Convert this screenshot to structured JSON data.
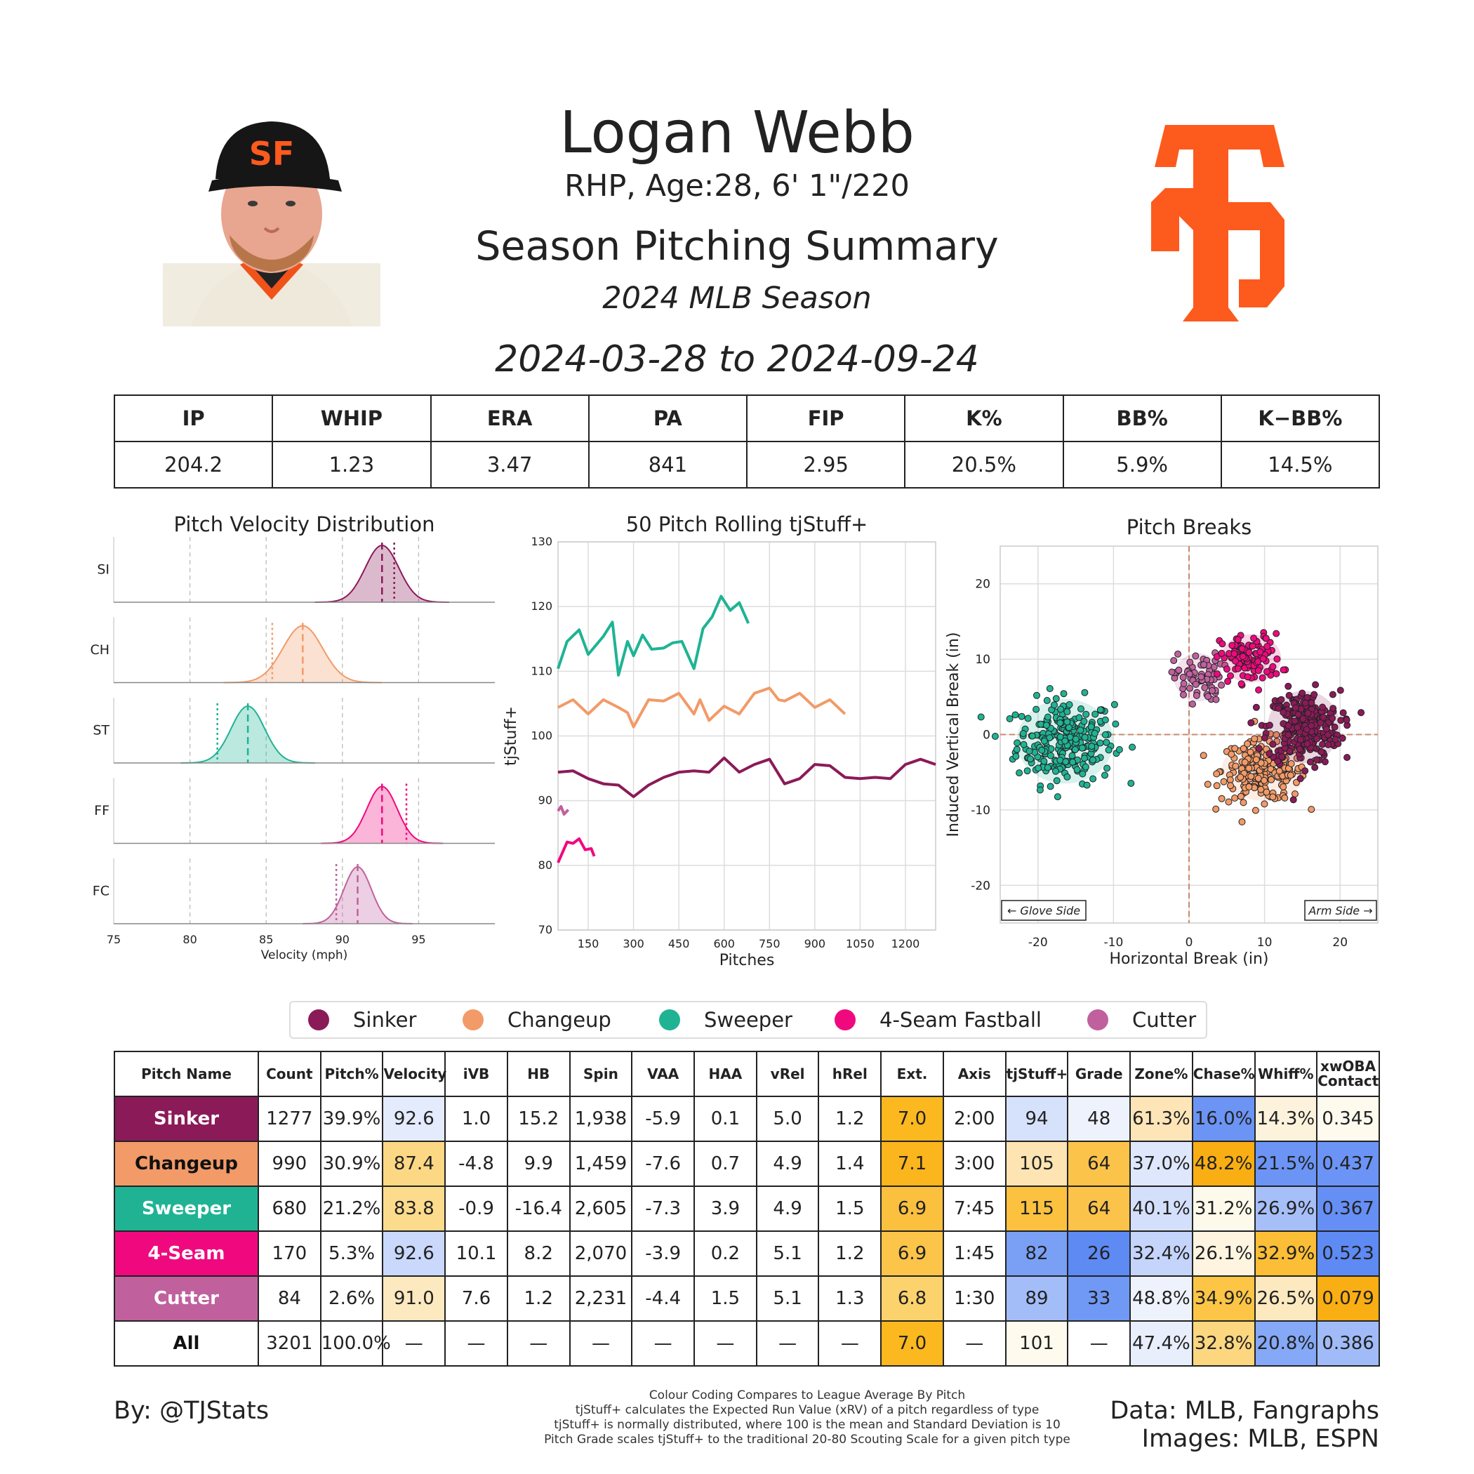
{
  "header": {
    "title": "Logan Webb",
    "subtitle": "RHP, Age:28, 6' 1\"/220",
    "summary": "Season Pitching Summary",
    "season": "2024 MLB Season",
    "date_range": "2024-03-28 to 2024-09-24",
    "team_logo_text": "SF"
  },
  "colors": {
    "sinker": "#8b1a59",
    "changeup": "#f29a68",
    "sweeper": "#1fb394",
    "fourseam": "#f0097e",
    "cutter": "#c0619e",
    "giants_orange": "#fd5a1e"
  },
  "season_stats": {
    "headers": [
      "IP",
      "WHIP",
      "ERA",
      "PA",
      "FIP",
      "K%",
      "BB%",
      "K−BB%"
    ],
    "values": [
      "204.2",
      "1.23",
      "3.47",
      "841",
      "2.95",
      "20.5%",
      "5.9%",
      "14.5%"
    ]
  },
  "chart_data": [
    {
      "type": "area",
      "title": "Pitch Velocity Distribution",
      "xlabel": "Velocity (mph)",
      "ylabel": "",
      "xlim": [
        75,
        100
      ],
      "xticks": [
        75,
        80,
        85,
        90,
        95
      ],
      "categories": [
        "SI",
        "CH",
        "ST",
        "FF",
        "FC"
      ],
      "series": [
        {
          "name": "SI",
          "mean": 92.6,
          "sd": 1.1,
          "league_mean": 93.4
        },
        {
          "name": "CH",
          "mean": 87.4,
          "sd": 1.3,
          "league_mean": 85.4
        },
        {
          "name": "ST",
          "mean": 83.8,
          "sd": 1.1,
          "league_mean": 81.8
        },
        {
          "name": "FF",
          "mean": 92.6,
          "sd": 1.0,
          "league_mean": 94.2
        },
        {
          "name": "FC",
          "mean": 91.0,
          "sd": 0.9,
          "league_mean": 89.6
        }
      ]
    },
    {
      "type": "line",
      "title": "50 Pitch Rolling tjStuff+",
      "xlabel": "Pitches",
      "ylabel": "tjStuff+",
      "xlim": [
        50,
        1300
      ],
      "ylim": [
        70,
        130
      ],
      "xticks": [
        150,
        300,
        450,
        600,
        750,
        900,
        1050,
        1200
      ],
      "yticks": [
        70,
        80,
        90,
        100,
        110,
        120,
        130
      ],
      "series": [
        {
          "name": "Sweeper",
          "x": [
            50,
            80,
            120,
            150,
            200,
            230,
            250,
            280,
            300,
            330,
            360,
            400,
            430,
            460,
            500,
            530,
            560,
            590,
            620,
            650,
            680
          ],
          "values": [
            111,
            114,
            117,
            112,
            116,
            117,
            110,
            114,
            113,
            115,
            114,
            113,
            115,
            114,
            111,
            116,
            119,
            121,
            120,
            120,
            118
          ]
        },
        {
          "name": "Changeup",
          "x": [
            50,
            100,
            150,
            200,
            250,
            280,
            300,
            350,
            400,
            450,
            500,
            520,
            550,
            600,
            650,
            700,
            750,
            780,
            800,
            850,
            900,
            950,
            1000
          ],
          "values": [
            105,
            105,
            104,
            105,
            105,
            103,
            102,
            105,
            106,
            106,
            104,
            105,
            103,
            104,
            104,
            106,
            108,
            105,
            106,
            106,
            105,
            105,
            104
          ]
        },
        {
          "name": "Sinker",
          "x": [
            50,
            100,
            150,
            200,
            250,
            300,
            350,
            400,
            450,
            500,
            550,
            600,
            650,
            700,
            750,
            800,
            850,
            900,
            950,
            1000,
            1050,
            1100,
            1150,
            1200,
            1250,
            1300
          ],
          "values": [
            95,
            94,
            94,
            92,
            93,
            90,
            93,
            93,
            95,
            94,
            95,
            96,
            95,
            95,
            97,
            92,
            94,
            95,
            96,
            93,
            94,
            93,
            94,
            95,
            97,
            95
          ]
        },
        {
          "name": "Cutter",
          "x": [
            50,
            60,
            70,
            84
          ],
          "values": [
            89,
            88.5,
            88.5,
            88
          ]
        },
        {
          "name": "4-Seam Fastball",
          "x": [
            50,
            80,
            100,
            120,
            140,
            160,
            170
          ],
          "values": [
            81,
            83,
            84,
            83.5,
            83,
            82,
            82
          ]
        }
      ]
    },
    {
      "type": "scatter",
      "title": "Pitch Breaks",
      "xlabel": "Horizontal Break (in)",
      "ylabel": "Induced Vertical Break (in)",
      "xlim": [
        -25,
        25
      ],
      "ylim": [
        -25,
        25
      ],
      "xticks": [
        -20,
        -10,
        0,
        10,
        20
      ],
      "yticks": [
        -20,
        -10,
        0,
        10,
        20
      ],
      "annotations": [
        "← Glove Side",
        "Arm Side →"
      ],
      "series": [
        {
          "name": "Sweeper",
          "center": [
            -16.4,
            -0.9
          ],
          "spread": [
            4,
            3.5
          ],
          "n": 260
        },
        {
          "name": "Changeup",
          "center": [
            9.9,
            -4.8
          ],
          "spread": [
            3.5,
            2.5
          ],
          "n": 240
        },
        {
          "name": "Sinker",
          "center": [
            15.2,
            1.0
          ],
          "spread": [
            3,
            3
          ],
          "n": 280
        },
        {
          "name": "Cutter",
          "center": [
            1.2,
            7.6
          ],
          "spread": [
            2,
            2
          ],
          "n": 70
        },
        {
          "name": "4-Seam Fastball",
          "center": [
            8.2,
            10.1
          ],
          "spread": [
            2.5,
            2
          ],
          "n": 110
        }
      ]
    }
  ],
  "legend": {
    "items": [
      {
        "label": "Sinker",
        "color": "#8b1a59"
      },
      {
        "label": "Changeup",
        "color": "#f29a68"
      },
      {
        "label": "Sweeper",
        "color": "#1fb394"
      },
      {
        "label": "4-Seam Fastball",
        "color": "#f0097e"
      },
      {
        "label": "Cutter",
        "color": "#c0619e"
      }
    ]
  },
  "pitch_table": {
    "headers": [
      "Pitch Name",
      "Count",
      "Pitch%",
      "Velocity",
      "iVB",
      "HB",
      "Spin",
      "VAA",
      "HAA",
      "vRel",
      "hRel",
      "Ext.",
      "Axis",
      "tjStuff+",
      "Grade",
      "Zone%",
      "Chase%",
      "Whiff%",
      "xwOBA Contact"
    ],
    "rows": [
      {
        "name": "Sinker",
        "color": "#8b1a59",
        "text_color": "#ffffff",
        "cells": [
          "1277",
          "39.9%",
          "92.6",
          "1.0",
          "15.2",
          "1,938",
          "-5.9",
          "0.1",
          "5.0",
          "1.2",
          "7.0",
          "2:00",
          "94",
          "48",
          "61.3%",
          "16.0%",
          "14.3%",
          "0.345"
        ],
        "bg": [
          "#fff",
          "#fff",
          "#e3ebfd",
          "#fff",
          "#fff",
          "#fff",
          "#fff",
          "#fff",
          "#fff",
          "#fff",
          "#fbb81f",
          "#fff",
          "#d6e2fc",
          "#edf2fd",
          "#fde5b8",
          "#6b94f5",
          "#fdf3dc",
          "#fefaee"
        ]
      },
      {
        "name": "Changeup",
        "color": "#f29a68",
        "text_color": "#111111",
        "cells": [
          "990",
          "30.9%",
          "87.4",
          "-4.8",
          "9.9",
          "1,459",
          "-7.6",
          "0.7",
          "4.9",
          "1.4",
          "7.1",
          "3:00",
          "105",
          "64",
          "37.0%",
          "48.2%",
          "21.5%",
          "0.437"
        ],
        "bg": [
          "#fff",
          "#fff",
          "#fdd884",
          "#fff",
          "#fff",
          "#fff",
          "#fff",
          "#fff",
          "#fff",
          "#fff",
          "#fbb51d",
          "#fff",
          "#fde4b2",
          "#fcc34a",
          "#dee7fc",
          "#f9ae13",
          "#6b94f5",
          "#6c94f6"
        ]
      },
      {
        "name": "Sweeper",
        "color": "#1fb394",
        "text_color": "#ffffff",
        "cells": [
          "680",
          "21.2%",
          "83.8",
          "-0.9",
          "-16.4",
          "2,605",
          "-7.3",
          "3.9",
          "4.9",
          "1.5",
          "6.9",
          "7:45",
          "115",
          "64",
          "40.1%",
          "31.2%",
          "26.9%",
          "0.367"
        ],
        "bg": [
          "#fff",
          "#fff",
          "#fddb8c",
          "#fff",
          "#fff",
          "#fff",
          "#fff",
          "#fff",
          "#fff",
          "#fff",
          "#fcc03f",
          "#fff",
          "#fcc13f",
          "#fcc34a",
          "#d4e0fb",
          "#fefaeb",
          "#a6bff8",
          "#658ff5"
        ]
      },
      {
        "name": "4-Seam",
        "color": "#f0097e",
        "text_color": "#ffffff",
        "cells": [
          "170",
          "5.3%",
          "92.6",
          "10.1",
          "8.2",
          "2,070",
          "-3.9",
          "0.2",
          "5.1",
          "1.2",
          "6.9",
          "1:45",
          "82",
          "26",
          "32.4%",
          "26.1%",
          "32.9%",
          "0.523"
        ],
        "bg": [
          "#fff",
          "#fff",
          "#c9d8fb",
          "#fff",
          "#fff",
          "#fff",
          "#fff",
          "#fff",
          "#fff",
          "#fff",
          "#fcc449",
          "#fff",
          "#7aa0f6",
          "#5e8af4",
          "#c4d4fa",
          "#fef4df",
          "#fbbe36",
          "#5e8af4"
        ]
      },
      {
        "name": "Cutter",
        "color": "#c0619e",
        "text_color": "#ffffff",
        "cells": [
          "84",
          "2.6%",
          "91.0",
          "7.6",
          "1.2",
          "2,231",
          "-4.4",
          "1.5",
          "5.1",
          "1.3",
          "6.8",
          "1:30",
          "89",
          "33",
          "48.8%",
          "34.9%",
          "26.5%",
          "0.079"
        ],
        "bg": [
          "#fff",
          "#fff",
          "#fde9bf",
          "#fff",
          "#fff",
          "#fff",
          "#fff",
          "#fff",
          "#fff",
          "#fff",
          "#fcd26d",
          "#fff",
          "#a3bdf8",
          "#7098f5",
          "#eef2fd",
          "#fcc545",
          "#fde9bf",
          "#f9ae13"
        ]
      },
      {
        "name": "All",
        "color": "#ffffff",
        "text_color": "#111111",
        "cells": [
          "3201",
          "100.0%",
          "—",
          "—",
          "—",
          "—",
          "—",
          "—",
          "—",
          "—",
          "7.0",
          "—",
          "101",
          "—",
          "47.4%",
          "32.8%",
          "20.8%",
          "0.386"
        ],
        "bg": [
          "#fff",
          "#fff",
          "#fff",
          "#fff",
          "#fff",
          "#fff",
          "#fff",
          "#fff",
          "#fff",
          "#fff",
          "#fbb81f",
          "#fff",
          "#fefaee",
          "#fff",
          "#e8eefc",
          "#fcd77f",
          "#85a8f7",
          "#a0bbf8"
        ]
      }
    ]
  },
  "footer": {
    "credit": "By: @TJStats",
    "notes": [
      "Colour Coding Compares to League Average By Pitch",
      "tjStuff+ calculates the Expected Run Value (xRV) of a pitch regardless of type",
      "tjStuff+ is normally distributed, where 100 is the mean and Standard Deviation is 10",
      "Pitch Grade scales tjStuff+ to the traditional 20-80 Scouting Scale for a given pitch type"
    ],
    "data_source": "Data: MLB, Fangraphs",
    "images_source": "Images: MLB, ESPN"
  }
}
